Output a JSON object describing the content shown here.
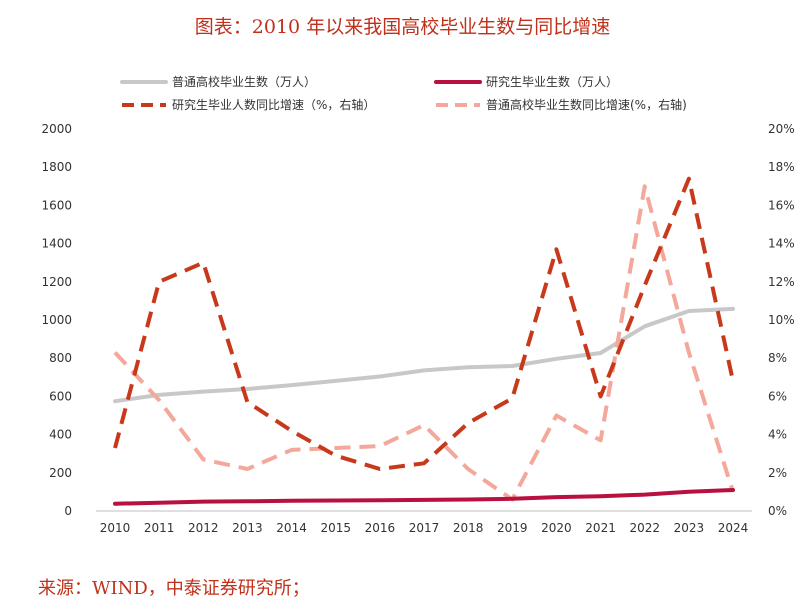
{
  "page": {
    "title": "图表：2010 年以来我国高校毕业生数与同比增速",
    "source": "来源：WIND，中泰证券研究所；"
  },
  "colors": {
    "undergrad": "#c8c8c8",
    "graduate": "#b8103f",
    "graduate_growth": "#c8391b",
    "undergrad_growth": "#f4a79b",
    "title_text": "#c0301a"
  },
  "chart_data": {
    "type": "line",
    "x": [
      "2010",
      "2011",
      "2012",
      "2013",
      "2014",
      "2015",
      "2016",
      "2017",
      "2018",
      "2019",
      "2020",
      "2021",
      "2022",
      "2023",
      "2024"
    ],
    "y_left": {
      "lim": [
        0,
        2000
      ],
      "ticks": [
        "0",
        "200",
        "400",
        "600",
        "800",
        "1000",
        "1200",
        "1400",
        "1600",
        "1800",
        "2000"
      ]
    },
    "y_right": {
      "lim": [
        0,
        20
      ],
      "ticks": [
        "0%",
        "2%",
        "4%",
        "6%",
        "8%",
        "10%",
        "12%",
        "14%",
        "16%",
        "18%",
        "20%"
      ]
    },
    "grid": false,
    "legend_position": "top",
    "series": [
      {
        "name": "普通高校毕业生数（万人）",
        "axis": "left",
        "style": "solid",
        "color_key": "undergrad",
        "values": [
          575,
          608,
          625,
          639,
          659,
          681,
          704,
          736,
          753,
          759,
          797,
          827,
          967,
          1047,
          1058
        ]
      },
      {
        "name": "研究生毕业生数（万人）",
        "axis": "left",
        "style": "solid",
        "color_key": "graduate",
        "values": [
          38,
          43,
          49,
          51,
          54,
          55,
          56,
          58,
          60,
          64,
          73,
          77,
          86,
          101,
          110
        ]
      },
      {
        "name": "研究生毕业人数同比增速（%，右轴）",
        "axis": "right",
        "style": "dashed",
        "color_key": "graduate_growth",
        "values": [
          3.3,
          12.0,
          13.0,
          5.7,
          4.2,
          2.9,
          2.2,
          2.5,
          4.6,
          5.9,
          13.7,
          6.0,
          11.8,
          17.4,
          6.8
        ]
      },
      {
        "name": "普通高校毕业生数同比增速(%，右轴)",
        "axis": "right",
        "style": "dashed",
        "color_key": "undergrad_growth",
        "values": [
          8.3,
          5.8,
          2.7,
          2.2,
          3.2,
          3.3,
          3.4,
          4.5,
          2.2,
          0.6,
          5.0,
          3.7,
          17.0,
          8.3,
          1.0
        ]
      }
    ]
  }
}
